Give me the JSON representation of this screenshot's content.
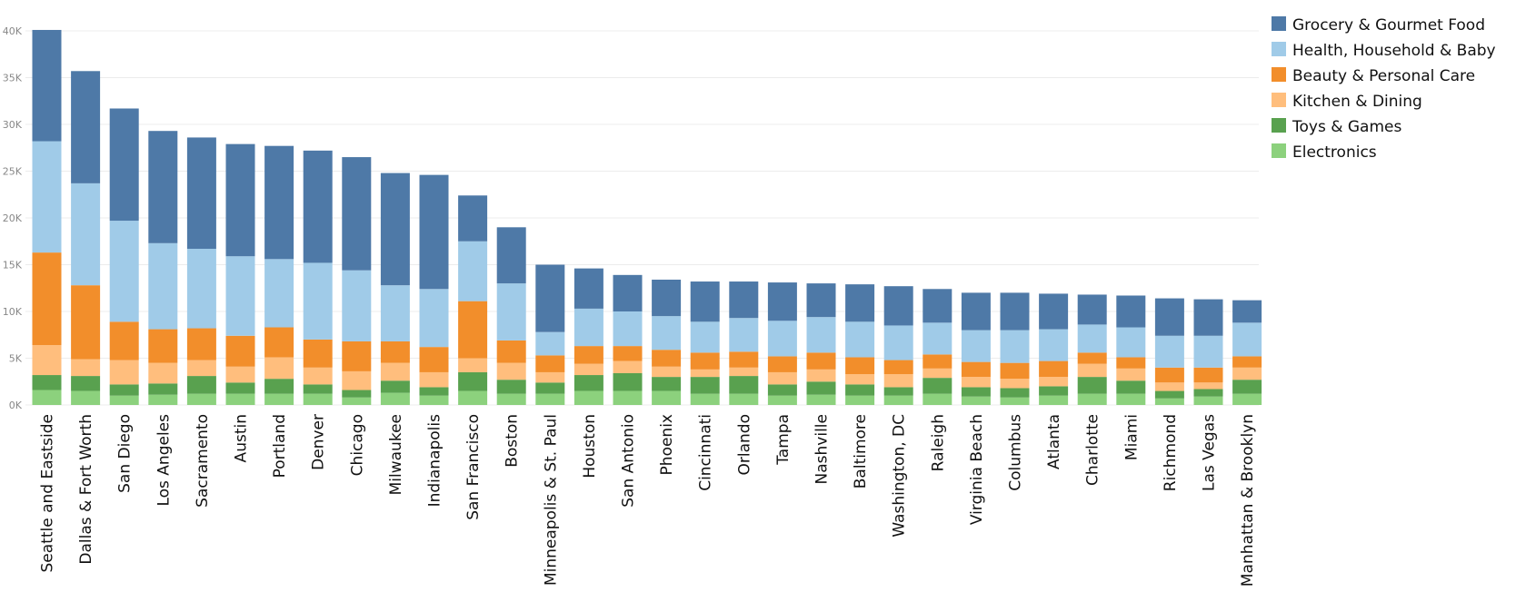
{
  "chart_data": {
    "type": "bar",
    "stacked": true,
    "title": "",
    "xlabel": "",
    "ylabel": "",
    "ylim": [
      0,
      40000
    ],
    "yticks": [
      0,
      5000,
      10000,
      15000,
      20000,
      25000,
      30000,
      35000,
      40000
    ],
    "ytick_labels": [
      "0K",
      "5K",
      "10K",
      "15K",
      "20K",
      "25K",
      "30K",
      "35K",
      "40K"
    ],
    "grid": true,
    "legend_position": "top-right",
    "categories": [
      "Seattle and Eastside",
      "Dallas & Fort Worth",
      "San Diego",
      "Los Angeles",
      "Sacramento",
      "Austin",
      "Portland",
      "Denver",
      "Chicago",
      "Milwaukee",
      "Indianapolis",
      "San Francisco",
      "Boston",
      "Minneapolis & St. Paul",
      "Houston",
      "San Antonio",
      "Phoenix",
      "Cincinnati",
      "Orlando",
      "Tampa",
      "Nashville",
      "Baltimore",
      "Washington, DC",
      "Raleigh",
      "Virginia Beach",
      "Columbus",
      "Atlanta",
      "Charlotte",
      "Miami",
      "Richmond",
      "Las Vegas",
      "Manhattan & Brooklyn"
    ],
    "series": [
      {
        "name": "Electronics",
        "color": "#8cd17d",
        "values": [
          1600,
          1500,
          1000,
          1100,
          1200,
          1200,
          1200,
          1200,
          800,
          1300,
          1000,
          1500,
          1200,
          1200,
          1500,
          1500,
          1500,
          1200,
          1200,
          1000,
          1100,
          1000,
          1000,
          1200,
          900,
          800,
          1000,
          1200,
          1200,
          700,
          900,
          1200
        ]
      },
      {
        "name": "Toys & Games",
        "color": "#59a14f",
        "values": [
          1600,
          1600,
          1200,
          1200,
          1900,
          1200,
          1600,
          1000,
          800,
          1300,
          900,
          2000,
          1500,
          1200,
          1700,
          1900,
          1500,
          1800,
          1900,
          1200,
          1400,
          1200,
          900,
          1700,
          1000,
          1000,
          1000,
          1800,
          1400,
          800,
          800,
          1500
        ]
      },
      {
        "name": "Kitchen & Dining",
        "color": "#ffbe7d",
        "values": [
          3200,
          1800,
          2600,
          2200,
          1700,
          1700,
          2300,
          1800,
          2000,
          1900,
          1600,
          1500,
          1800,
          1100,
          1200,
          1300,
          1100,
          800,
          900,
          1300,
          1300,
          1100,
          1400,
          1000,
          1100,
          1000,
          1000,
          1400,
          1300,
          900,
          700,
          1300
        ]
      },
      {
        "name": "Beauty & Personal Care",
        "color": "#f28e2b",
        "values": [
          9900,
          7900,
          4100,
          3600,
          3400,
          3300,
          3200,
          3000,
          3200,
          2300,
          2700,
          6100,
          2400,
          1800,
          1900,
          1600,
          1800,
          1800,
          1700,
          1700,
          1800,
          1800,
          1500,
          1500,
          1600,
          1700,
          1700,
          1200,
          1200,
          1600,
          1600,
          1200
        ]
      },
      {
        "name": "Health, Household & Baby",
        "color": "#a0cbe8",
        "values": [
          11900,
          10900,
          10800,
          9200,
          8500,
          8500,
          7300,
          8200,
          7600,
          6000,
          6200,
          6400,
          6100,
          2500,
          4000,
          3700,
          3600,
          3300,
          3600,
          3800,
          3800,
          3800,
          3700,
          3400,
          3400,
          3500,
          3400,
          3000,
          3200,
          3400,
          3400,
          3600
        ]
      },
      {
        "name": "Grocery & Gourmet Food",
        "color": "#4e79a7",
        "values": [
          11900,
          12000,
          12000,
          12000,
          11900,
          12000,
          12100,
          12000,
          12100,
          12000,
          12200,
          4900,
          6000,
          7200,
          4300,
          3900,
          3900,
          4300,
          3900,
          4100,
          3600,
          4000,
          4200,
          3600,
          4000,
          4000,
          3800,
          3200,
          3400,
          4000,
          3900,
          2400
        ]
      }
    ]
  }
}
